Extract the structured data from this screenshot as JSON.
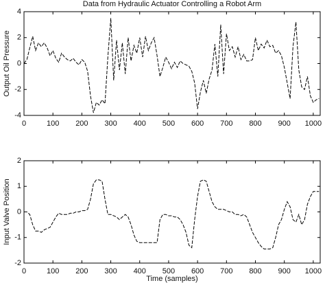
{
  "chart_data": [
    {
      "type": "line",
      "title": "Data from Hydraulic Actuator Controlling a Robot Arm",
      "ylabel": "Output Oil Pressure",
      "x": [
        0,
        10,
        20,
        30,
        40,
        50,
        60,
        70,
        80,
        90,
        100,
        110,
        120,
        130,
        140,
        150,
        160,
        170,
        180,
        190,
        200,
        210,
        220,
        230,
        240,
        250,
        260,
        270,
        280,
        290,
        300,
        310,
        320,
        330,
        340,
        350,
        360,
        370,
        380,
        390,
        400,
        410,
        420,
        430,
        440,
        450,
        460,
        470,
        480,
        490,
        500,
        510,
        520,
        530,
        540,
        550,
        560,
        570,
        580,
        590,
        600,
        610,
        620,
        630,
        640,
        650,
        660,
        670,
        680,
        690,
        700,
        710,
        720,
        730,
        740,
        750,
        760,
        770,
        780,
        790,
        800,
        810,
        820,
        830,
        840,
        850,
        860,
        870,
        880,
        890,
        900,
        910,
        920,
        930,
        940,
        950,
        960,
        970,
        980,
        990,
        1000,
        1010,
        1020
      ],
      "values": [
        0,
        0.3,
        1.2,
        2.1,
        1.0,
        1.6,
        1.3,
        1.6,
        1.2,
        0.6,
        1.0,
        0.4,
        0.1,
        0.8,
        0.5,
        0.3,
        0.2,
        0.4,
        0.1,
        -0.1,
        0.3,
        0.1,
        -0.6,
        -2.5,
        -3.8,
        -3.0,
        -3.2,
        -2.8,
        -3.1,
        0.5,
        3.5,
        -1.3,
        1.8,
        -0.5,
        1.6,
        -0.8,
        2.0,
        0.2,
        1.4,
        0.8,
        2.0,
        0.5,
        2.1,
        1.0,
        1.6,
        2.0,
        0.6,
        -1.0,
        -0.3,
        0.5,
        0.1,
        -0.4,
        0.1,
        -0.3,
        0.2,
        0,
        -0.1,
        -0.2,
        -0.6,
        -1.5,
        -3.5,
        -2.2,
        -1.3,
        -2.3,
        -1.2,
        -0.5,
        1.5,
        -1.0,
        3.0,
        -0.8,
        2.3,
        1.0,
        1.3,
        0.5,
        1.3,
        0.3,
        0.7,
        0.2,
        0.2,
        0.3,
        2.0,
        1.0,
        1.5,
        1.2,
        1.8,
        1.3,
        1.4,
        0.8,
        1.0,
        0.6,
        -0.3,
        -1.5,
        -2.7,
        1.3,
        3.2,
        -0.5,
        -1.8,
        -2.0,
        -1.0,
        -2.5,
        -3.0,
        -2.8,
        -2.7
      ],
      "color": "#000000",
      "xlim": [
        0,
        1024
      ],
      "ylim": [
        -4,
        4
      ],
      "xticks": [
        0,
        100,
        200,
        300,
        400,
        500,
        600,
        700,
        800,
        900,
        1000
      ],
      "yticks": [
        -4,
        -2,
        0,
        2,
        4
      ]
    },
    {
      "type": "line",
      "ylabel": "Input Valve Position",
      "xlabel": "Time (samples)",
      "x": [
        0,
        10,
        20,
        30,
        40,
        50,
        60,
        70,
        80,
        90,
        100,
        110,
        120,
        130,
        140,
        150,
        160,
        170,
        180,
        190,
        200,
        210,
        220,
        230,
        240,
        250,
        260,
        270,
        280,
        290,
        300,
        310,
        320,
        330,
        340,
        350,
        360,
        370,
        380,
        390,
        400,
        410,
        420,
        430,
        440,
        450,
        460,
        470,
        480,
        490,
        500,
        510,
        520,
        530,
        540,
        550,
        560,
        570,
        580,
        590,
        600,
        610,
        620,
        630,
        640,
        650,
        660,
        670,
        680,
        690,
        700,
        710,
        720,
        730,
        740,
        750,
        760,
        770,
        780,
        790,
        800,
        810,
        820,
        830,
        840,
        850,
        860,
        870,
        880,
        890,
        900,
        910,
        920,
        930,
        940,
        950,
        960,
        970,
        980,
        990,
        1000,
        1010,
        1020
      ],
      "values": [
        0,
        0,
        -0.1,
        -0.5,
        -0.75,
        -0.75,
        -0.8,
        -0.7,
        -0.65,
        -0.6,
        -0.4,
        -0.2,
        -0.05,
        -0.1,
        -0.1,
        -0.1,
        -0.05,
        -0.05,
        0,
        0,
        0.05,
        0.05,
        0.1,
        0.5,
        1.1,
        1.25,
        1.25,
        1.2,
        0.5,
        -0.1,
        -0.1,
        -0.15,
        -0.2,
        -0.3,
        -0.2,
        -0.1,
        -0.2,
        -0.5,
        -0.9,
        -1.15,
        -1.2,
        -1.2,
        -1.2,
        -1.2,
        -1.2,
        -1.2,
        -1.2,
        -0.3,
        -0.1,
        -0.1,
        -0.15,
        -0.15,
        -0.2,
        -0.2,
        -0.3,
        -0.5,
        -0.8,
        -1.3,
        -1.4,
        -0.3,
        0.6,
        1.2,
        1.25,
        1.2,
        0.8,
        0.4,
        0.2,
        0.1,
        0.1,
        0.1,
        0.05,
        0,
        0,
        -0.1,
        -0.1,
        -0.15,
        -0.1,
        -0.2,
        -0.5,
        -0.8,
        -1.0,
        -1.2,
        -1.35,
        -1.45,
        -1.45,
        -1.45,
        -1.4,
        -1.0,
        -0.5,
        -0.3,
        0.1,
        0.4,
        0.2,
        -0.3,
        -0.4,
        -0.1,
        -0.5,
        -0.3,
        0.3,
        0.6,
        0.8,
        0.8,
        0.8
      ],
      "color": "#000000",
      "xlim": [
        0,
        1024
      ],
      "ylim": [
        -2,
        2
      ],
      "xticks": [
        0,
        100,
        200,
        300,
        400,
        500,
        600,
        700,
        800,
        900,
        1000
      ],
      "yticks": [
        -2,
        -1,
        0,
        1,
        2
      ]
    }
  ]
}
